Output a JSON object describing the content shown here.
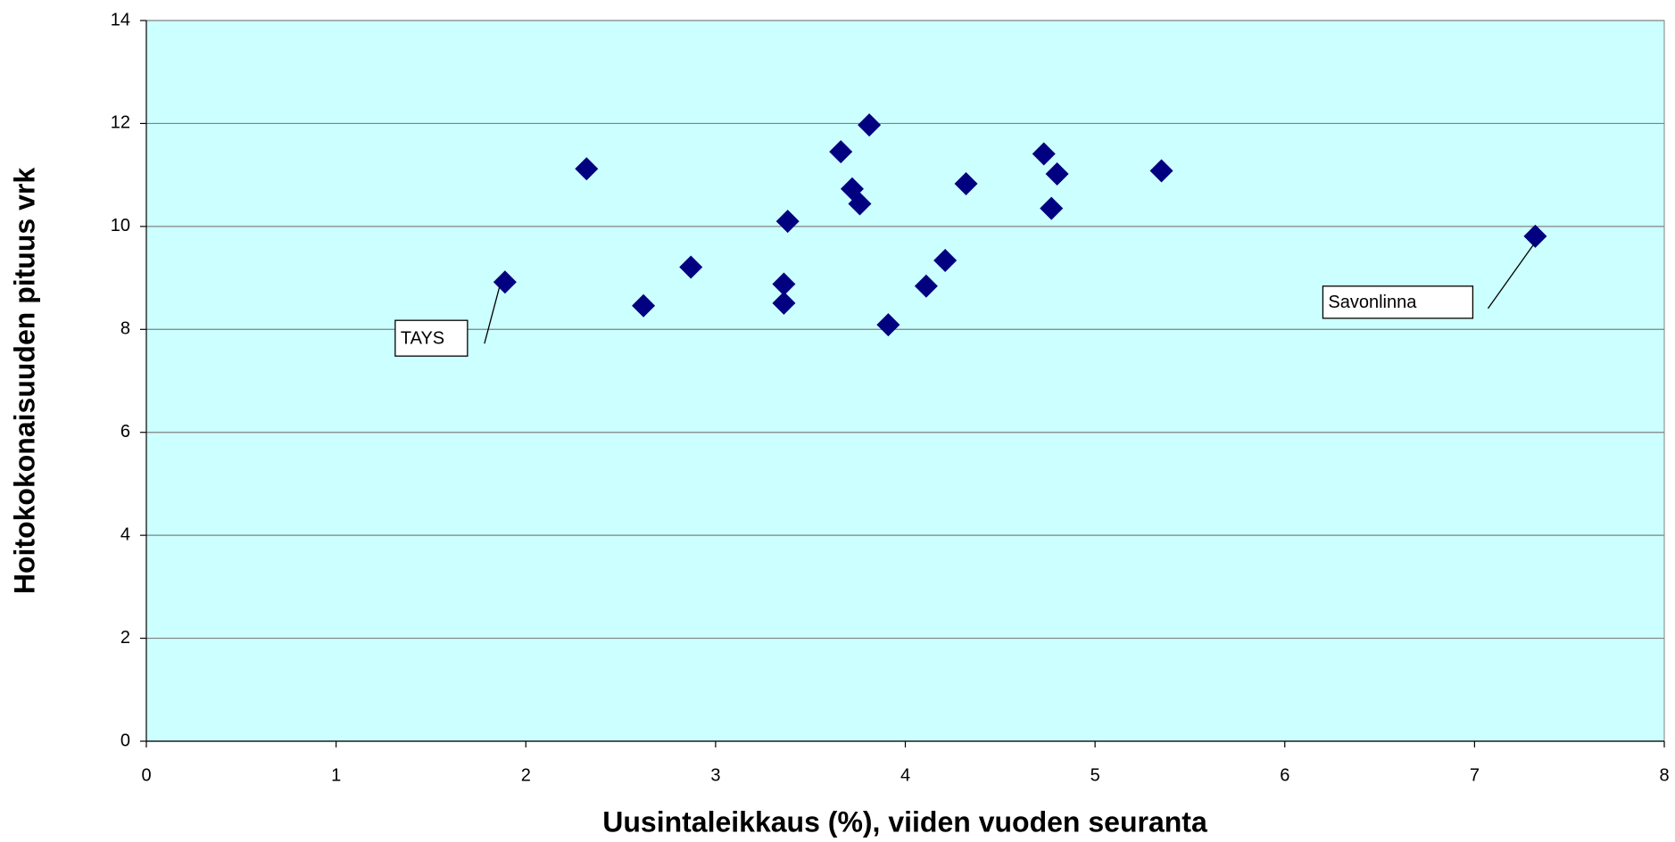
{
  "chart_data": {
    "type": "scatter",
    "x_label": "Uusintaleikkaus (%), viiden vuoden seuranta",
    "y_label": "Hoitokokonaisuuden pituus vrk",
    "x": [
      1.89,
      2.32,
      2.62,
      2.87,
      3.36,
      3.36,
      3.38,
      3.66,
      3.72,
      3.76,
      3.81,
      3.91,
      4.11,
      4.21,
      4.32,
      4.73,
      4.8,
      4.77,
      5.35,
      7.32
    ],
    "values": [
      8.92,
      11.12,
      8.46,
      9.21,
      8.51,
      8.88,
      10.1,
      11.45,
      10.73,
      10.44,
      11.97,
      8.09,
      8.84,
      9.34,
      10.83,
      11.41,
      11.02,
      10.35,
      11.08,
      9.81
    ],
    "color": "#000080",
    "background": "#ccffff",
    "xlim": [
      0,
      8
    ],
    "xticks": [
      0,
      1,
      2,
      3,
      4,
      5,
      6,
      7,
      8
    ],
    "ylim": [
      0,
      14
    ],
    "yticks": [
      0,
      2,
      4,
      6,
      8,
      10,
      12,
      14
    ],
    "grid": true,
    "annotations": [
      "TAYS",
      "Savonlinna"
    ]
  }
}
